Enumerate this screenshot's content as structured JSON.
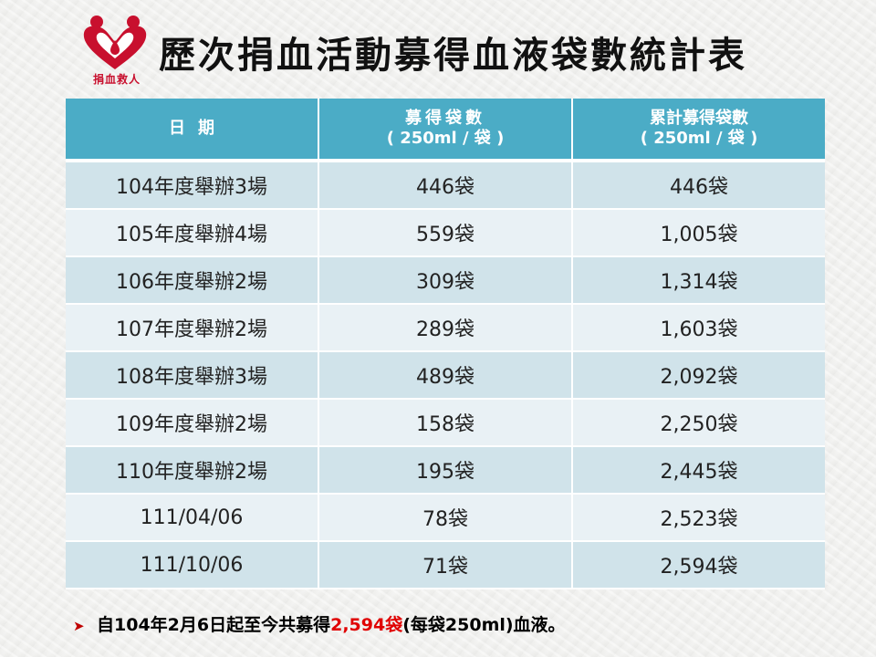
{
  "logo": {
    "text": "捐血救人",
    "color": "#c8102e"
  },
  "title": "歷次捐血活動募得血液袋數統計表",
  "table": {
    "headers": {
      "col1": "日期",
      "col2_line1": "募得袋數",
      "col2_line2": "( 250ml / 袋 )",
      "col3_line1": "累計募得袋數",
      "col3_line2": "( 250ml / 袋 )"
    },
    "rows": [
      {
        "date": "104年度舉辦3場",
        "bags": "446袋",
        "cumulative": "446袋"
      },
      {
        "date": "105年度舉辦4場",
        "bags": "559袋",
        "cumulative": "1,005袋"
      },
      {
        "date": "106年度舉辦2場",
        "bags": "309袋",
        "cumulative": "1,314袋"
      },
      {
        "date": "107年度舉辦2場",
        "bags": "289袋",
        "cumulative": "1,603袋"
      },
      {
        "date": "108年度舉辦3場",
        "bags": "489袋",
        "cumulative": "2,092袋"
      },
      {
        "date": "109年度舉辦2場",
        "bags": "158袋",
        "cumulative": "2,250袋"
      },
      {
        "date": "110年度舉辦2場",
        "bags": "195袋",
        "cumulative": "2,445袋"
      },
      {
        "date": "111/04/06",
        "bags": "78袋",
        "cumulative": "2,523袋"
      },
      {
        "date": "111/10/06",
        "bags": "71袋",
        "cumulative": "2,594袋"
      }
    ],
    "header_color": "#4bacc6",
    "row_color_odd": "#d0e3ea",
    "row_color_even": "#e9f1f5"
  },
  "note": {
    "bullet_icon": "arrow-right-icon",
    "prefix": "自104年2月6日起至今共募得",
    "highlight": "2,594袋",
    "suffix": "(每袋250ml)血液。",
    "highlight_color": "#e00000"
  }
}
